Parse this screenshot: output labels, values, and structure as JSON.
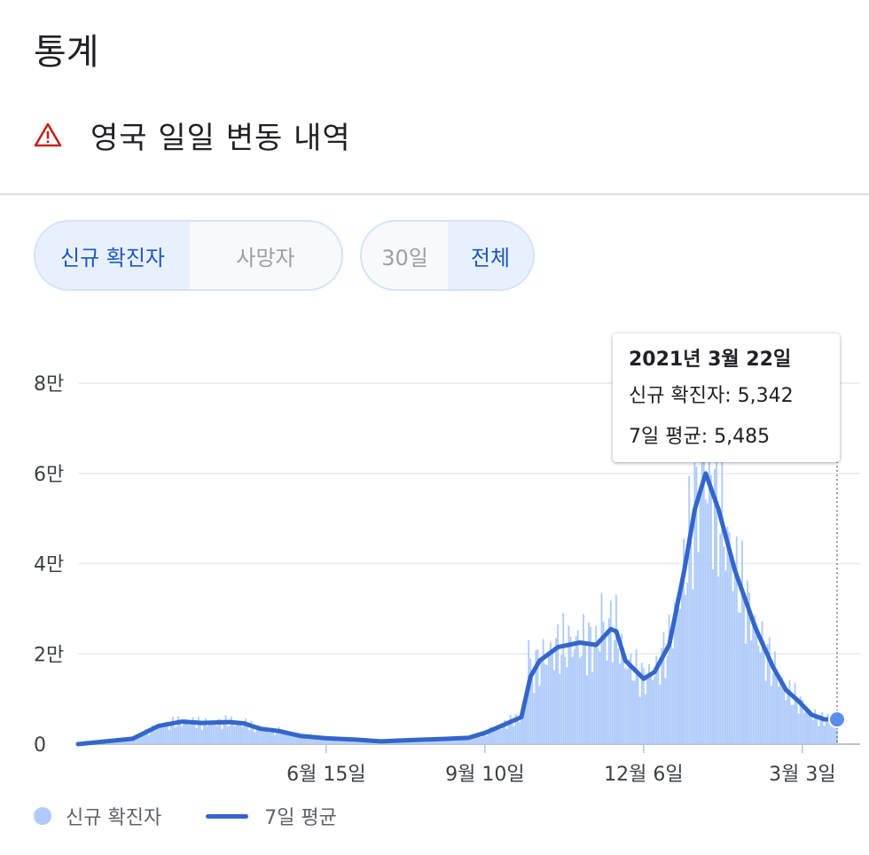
{
  "header": {
    "title": "통계",
    "subtitle": "영국 일일 변동 내역",
    "warning_icon": "warning-triangle-icon"
  },
  "toggles": {
    "metric": {
      "options": [
        "신규 확진자",
        "사망자"
      ],
      "selected": "신규 확진자"
    },
    "range": {
      "options": [
        "30일",
        "전체"
      ],
      "selected": "전체"
    }
  },
  "tooltip": {
    "date": "2021년 3월 22일",
    "cases_line": "신규 확진자: 5,342",
    "avg_line": "7일 평균: 5,485"
  },
  "legend": {
    "bars": "신규 확진자",
    "line": "7일 평균"
  },
  "colors": {
    "accent": "#3366cc",
    "bars": "#aecbfa",
    "toggle_active_bg": "#e8f0fe",
    "toggle_active_text": "#1a57c5",
    "warning": "#d93025"
  },
  "chart_data": {
    "type": "bar",
    "y_tick_labels": [
      "0",
      "2만",
      "4만",
      "6만",
      "8만"
    ],
    "ylim": [
      0,
      80000
    ],
    "x_tick_labels": [
      "6월 15일",
      "9월 10일",
      "12월 6일",
      "3월 3일"
    ],
    "x_ticks": [
      "2020-06-15",
      "2020-09-10",
      "2020-12-06",
      "2021-03-03"
    ],
    "x_range": [
      "2020-01-31",
      "2021-03-22"
    ],
    "highlight": {
      "date": "2021-03-22",
      "value": 5485
    },
    "series": [
      {
        "name": "7일 평균",
        "type": "line",
        "x": [
          "2020-01-31",
          "2020-03-01",
          "2020-03-15",
          "2020-03-28",
          "2020-04-08",
          "2020-04-15",
          "2020-04-23",
          "2020-05-01",
          "2020-05-10",
          "2020-05-20",
          "2020-06-01",
          "2020-06-15",
          "2020-07-01",
          "2020-07-15",
          "2020-08-01",
          "2020-08-15",
          "2020-09-01",
          "2020-09-10",
          "2020-09-20",
          "2020-09-30",
          "2020-10-05",
          "2020-10-10",
          "2020-10-20",
          "2020-11-01",
          "2020-11-10",
          "2020-11-18",
          "2020-11-21",
          "2020-11-26",
          "2020-12-06",
          "2020-12-12",
          "2020-12-20",
          "2020-12-28",
          "2021-01-03",
          "2021-01-09",
          "2021-01-16",
          "2021-01-25",
          "2021-02-05",
          "2021-02-15",
          "2021-02-22",
          "2021-03-01",
          "2021-03-08",
          "2021-03-15",
          "2021-03-22"
        ],
        "values": [
          0,
          1200,
          4000,
          5000,
          4700,
          4800,
          4900,
          4600,
          3400,
          2900,
          1800,
          1300,
          1000,
          600,
          900,
          1100,
          1400,
          2500,
          4200,
          6000,
          15000,
          18500,
          21500,
          22500,
          22000,
          25500,
          25000,
          18500,
          14500,
          16000,
          22000,
          38000,
          52000,
          60000,
          52000,
          38500,
          26000,
          17000,
          12000,
          9500,
          6500,
          5500,
          5485
        ]
      },
      {
        "name": "신규 확진자",
        "type": "bar",
        "x_span": [
          "2020-01-31",
          "2021-03-22"
        ],
        "notable_values": [
          {
            "x": "2021-01-08",
            "value": 68000
          },
          {
            "x": "2020-11-13",
            "value": 33500
          },
          {
            "x": "2020-10-04",
            "value": 23000
          },
          {
            "x": "2021-03-22",
            "value": 5342
          }
        ]
      }
    ]
  }
}
